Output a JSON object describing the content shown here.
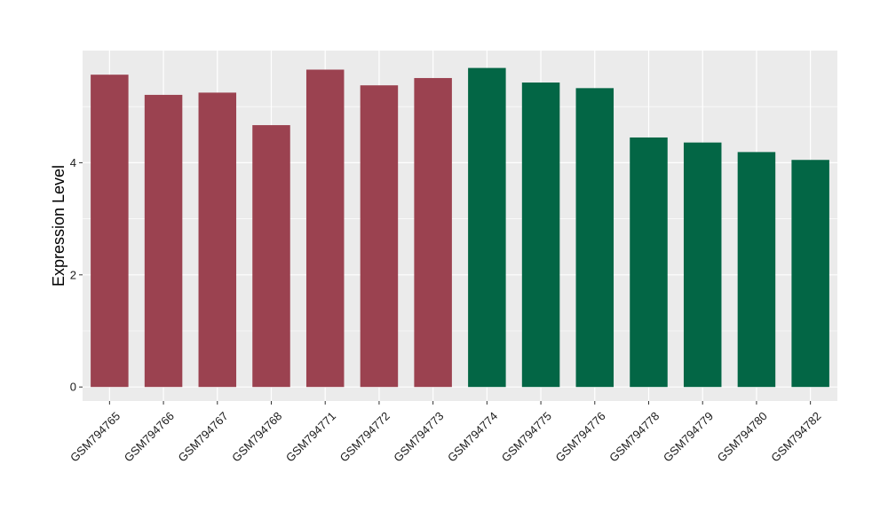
{
  "chart_data": {
    "type": "bar",
    "title": "",
    "xlabel": "",
    "ylabel": "Expression Level",
    "ylim": [
      -0.25,
      6.0
    ],
    "y_ticks": [
      0,
      2,
      4
    ],
    "y_tick_labels": [
      "0",
      "2",
      "4"
    ],
    "grid": true,
    "legend": "none",
    "categories": [
      "GSM794765",
      "GSM794766",
      "GSM794767",
      "GSM794768",
      "GSM794771",
      "GSM794772",
      "GSM794773",
      "GSM794774",
      "GSM794775",
      "GSM794776",
      "GSM794778",
      "GSM794779",
      "GSM794780",
      "GSM794782"
    ],
    "values": [
      5.57,
      5.21,
      5.25,
      4.67,
      5.66,
      5.38,
      5.51,
      5.69,
      5.43,
      5.33,
      4.45,
      4.36,
      4.19,
      4.05
    ],
    "bar_colors": [
      "#9b4250",
      "#9b4250",
      "#9b4250",
      "#9b4250",
      "#9b4250",
      "#9b4250",
      "#9b4250",
      "#036645",
      "#036645",
      "#036645",
      "#036645",
      "#036645",
      "#036645",
      "#036645"
    ],
    "panel_background": "#ebebeb",
    "grid_color": "#ffffff"
  }
}
